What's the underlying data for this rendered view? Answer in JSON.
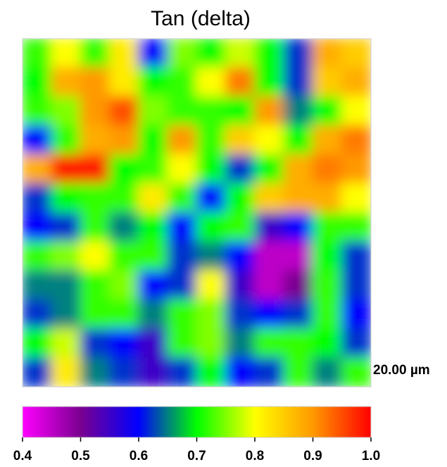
{
  "chart_data": {
    "type": "heatmap",
    "title": "Tan (delta)",
    "scale_label": "20.00 µm",
    "values": [
      [
        0.72,
        0.8,
        0.72,
        0.82,
        0.6,
        0.75,
        0.7,
        0.78,
        0.7,
        0.62,
        0.88,
        0.85
      ],
      [
        0.7,
        0.88,
        0.9,
        0.82,
        0.7,
        0.72,
        0.8,
        0.92,
        0.7,
        0.62,
        0.85,
        0.88
      ],
      [
        0.72,
        0.75,
        0.9,
        0.95,
        0.75,
        0.72,
        0.72,
        0.7,
        0.9,
        0.65,
        0.7,
        0.8
      ],
      [
        0.6,
        0.72,
        0.88,
        0.9,
        0.7,
        0.9,
        0.72,
        0.85,
        0.8,
        0.7,
        0.88,
        0.92
      ],
      [
        0.88,
        0.98,
        0.98,
        0.7,
        0.72,
        0.8,
        0.7,
        0.62,
        0.7,
        0.88,
        0.92,
        0.9
      ],
      [
        0.62,
        0.7,
        0.72,
        0.72,
        0.82,
        0.72,
        0.6,
        0.7,
        0.85,
        0.88,
        0.88,
        0.8
      ],
      [
        0.6,
        0.62,
        0.72,
        0.65,
        0.7,
        0.6,
        0.7,
        0.72,
        0.55,
        0.6,
        0.72,
        0.72
      ],
      [
        0.72,
        0.75,
        0.8,
        0.72,
        0.72,
        0.62,
        0.65,
        0.6,
        0.45,
        0.45,
        0.7,
        0.62
      ],
      [
        0.65,
        0.65,
        0.72,
        0.75,
        0.6,
        0.62,
        0.8,
        0.55,
        0.45,
        0.5,
        0.72,
        0.62
      ],
      [
        0.62,
        0.65,
        0.72,
        0.72,
        0.65,
        0.72,
        0.75,
        0.62,
        0.6,
        0.62,
        0.72,
        0.6
      ],
      [
        0.7,
        0.78,
        0.62,
        0.6,
        0.55,
        0.72,
        0.75,
        0.65,
        0.72,
        0.72,
        0.7,
        0.62
      ],
      [
        0.62,
        0.82,
        0.65,
        0.62,
        0.55,
        0.62,
        0.7,
        0.6,
        0.62,
        0.72,
        0.65,
        0.72
      ]
    ],
    "colorscale": [
      "#ff00ff",
      "#7a0090",
      "#0000ff",
      "#00ff00",
      "#ffff00",
      "#ff9900",
      "#ff0000"
    ],
    "clim": [
      0.4,
      1
    ],
    "cticks": [
      0.4,
      0.5,
      0.6,
      0.7,
      0.8,
      0.9,
      {
        "value": 1,
        "label": "1.0"
      }
    ]
  }
}
